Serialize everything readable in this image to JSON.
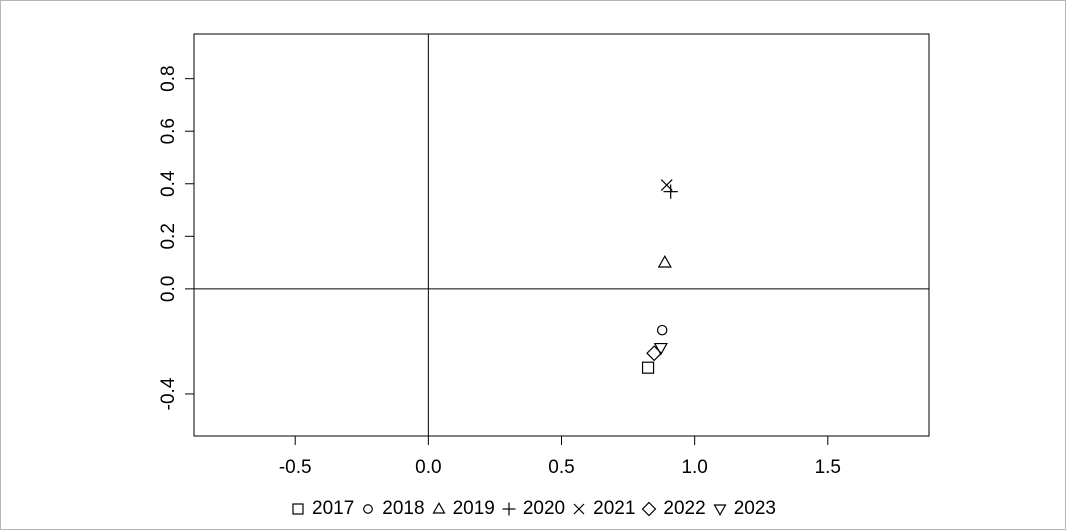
{
  "chart_data": {
    "type": "scatter",
    "title": "",
    "xlabel": "",
    "ylabel": "",
    "xlim": [
      -0.88,
      1.88
    ],
    "ylim": [
      -0.56,
      0.97
    ],
    "x_ticks": [
      -0.5,
      0.0,
      0.5,
      1.0,
      1.5
    ],
    "x_tick_labels": [
      "-0.5",
      "0.0",
      "0.5",
      "1.0",
      "1.5"
    ],
    "y_ticks": [
      -0.4,
      0.0,
      0.2,
      0.4,
      0.6,
      0.8
    ],
    "y_tick_labels": [
      "-0.4",
      "0.0",
      "0.2",
      "0.4",
      "0.6",
      "0.8"
    ],
    "reference_lines": {
      "x": 0,
      "y": 0
    },
    "grid": false,
    "legend_position": "bottom",
    "series": [
      {
        "name": "2017",
        "marker": "square",
        "x": [
          0.825
        ],
        "y": [
          -0.3
        ]
      },
      {
        "name": "2018",
        "marker": "circle",
        "x": [
          0.878
        ],
        "y": [
          -0.157
        ]
      },
      {
        "name": "2019",
        "marker": "triangle-up",
        "x": [
          0.888
        ],
        "y": [
          0.1
        ]
      },
      {
        "name": "2020",
        "marker": "plus",
        "x": [
          0.91
        ],
        "y": [
          0.37
        ]
      },
      {
        "name": "2021",
        "marker": "cross",
        "x": [
          0.895
        ],
        "y": [
          0.395
        ]
      },
      {
        "name": "2022",
        "marker": "diamond",
        "x": [
          0.848
        ],
        "y": [
          -0.245
        ]
      },
      {
        "name": "2023",
        "marker": "triangle-down",
        "x": [
          0.873
        ],
        "y": [
          -0.225
        ]
      }
    ]
  }
}
